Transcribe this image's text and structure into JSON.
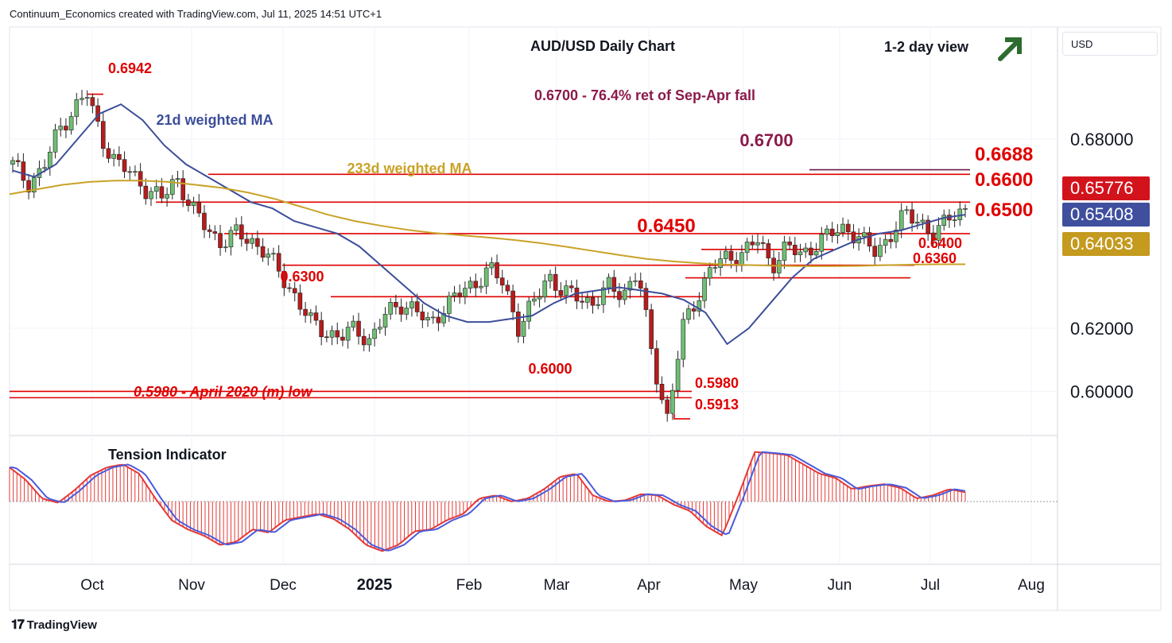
{
  "header": {
    "credit": "Continuum_Economics created with TradingView.com, Jul 11, 2025 14:51 UTC+1"
  },
  "footer": {
    "brand": "TradingView"
  },
  "currency_label": "USD",
  "colors": {
    "up": "#26a69a",
    "down": "#ef5350",
    "support_resistance": "#e00000",
    "wma21": "#3c4e9a",
    "wma233": "#c9a227",
    "fib": "#8b1a4a",
    "arrow": "#2e6b2e",
    "price_tag_last": "#d3131c",
    "price_tag_wma21": "#3f4f9e",
    "price_tag_wma233": "#c49a1f"
  },
  "icons": {
    "trend_arrow": "arrow-up-right-icon"
  },
  "chart_data": [
    {
      "type": "line",
      "title": "AUD/USD Daily Chart",
      "view_label": "1-2 day view",
      "x_ticks": [
        "Oct",
        "Nov",
        "Dec",
        "2025",
        "Feb",
        "Mar",
        "Apr",
        "May",
        "Jun",
        "Jul",
        "Aug"
      ],
      "y_ticks": [
        "0.68000",
        "0.62000",
        "0.60000"
      ],
      "ylim": [
        0.586,
        0.7155
      ],
      "price_tags": [
        {
          "name": "last",
          "value": "0.65776"
        },
        {
          "name": "wma21",
          "value": "0.65408"
        },
        {
          "name": "wma233",
          "value": "0.64033"
        }
      ],
      "annotations": {
        "high": "0.6942",
        "fib_note": "0.6700 - 76.4% ret of Sep-Apr fall",
        "wma21_label": "21d weighted MA",
        "wma233_label": "233d weighted MA",
        "level_6700": "0.6700",
        "level_6688": "0.6688",
        "level_6600": "0.6600",
        "level_6500": "0.6500",
        "level_6450": "0.6450",
        "level_6400": "0.6400",
        "level_6360": "0.6360",
        "level_6300": "0.6300",
        "level_6000": "0.6000",
        "level_5980": "0.5980",
        "level_5980_note": "0.5980 - April 2020 (m) low",
        "low": "0.5913"
      },
      "levels": [
        {
          "value": 0.67,
          "role": "fib"
        },
        {
          "value": 0.6688,
          "role": "resistance"
        },
        {
          "value": 0.66,
          "role": "resistance"
        },
        {
          "value": 0.65,
          "role": "resistance"
        },
        {
          "value": 0.645,
          "role": "support"
        },
        {
          "value": 0.64,
          "role": "support"
        },
        {
          "value": 0.636,
          "role": "support"
        },
        {
          "value": 0.63,
          "role": "support"
        },
        {
          "value": 0.6,
          "role": "support"
        },
        {
          "value": 0.598,
          "role": "support"
        }
      ],
      "series": [
        {
          "name": "21d weighted MA",
          "values": [
            0.67,
            0.668,
            0.672,
            0.68,
            0.688,
            0.691,
            0.686,
            0.678,
            0.672,
            0.668,
            0.664,
            0.66,
            0.658,
            0.654,
            0.652,
            0.65,
            0.646,
            0.64,
            0.634,
            0.628,
            0.624,
            0.622,
            0.622,
            0.623,
            0.624,
            0.628,
            0.631,
            0.632,
            0.633,
            0.632,
            0.631,
            0.629,
            0.625,
            0.615,
            0.62,
            0.628,
            0.636,
            0.642,
            0.645,
            0.648,
            0.65,
            0.651,
            0.653,
            0.655,
            0.656
          ]
        },
        {
          "name": "233d weighted MA",
          "values": [
            0.6625,
            0.664,
            0.6655,
            0.6664,
            0.6668,
            0.6668,
            0.6664,
            0.6655,
            0.6645,
            0.663,
            0.661,
            0.6585,
            0.656,
            0.654,
            0.6525,
            0.6512,
            0.6502,
            0.6495,
            0.6488,
            0.648,
            0.647,
            0.6458,
            0.6445,
            0.6432,
            0.642,
            0.6412,
            0.6406,
            0.6402,
            0.64,
            0.6398,
            0.6397,
            0.6397,
            0.6398,
            0.64,
            0.6402,
            0.6403,
            0.6403
          ]
        }
      ],
      "price_path": [
        0.672,
        0.666,
        0.67,
        0.682,
        0.689,
        0.6942,
        0.68,
        0.672,
        0.669,
        0.664,
        0.661,
        0.668,
        0.658,
        0.652,
        0.647,
        0.65,
        0.648,
        0.644,
        0.637,
        0.63,
        0.622,
        0.619,
        0.617,
        0.62,
        0.616,
        0.624,
        0.628,
        0.626,
        0.621,
        0.627,
        0.631,
        0.634,
        0.639,
        0.634,
        0.62,
        0.628,
        0.637,
        0.631,
        0.63,
        0.628,
        0.633,
        0.631,
        0.638,
        0.61,
        0.5913,
        0.62,
        0.63,
        0.64,
        0.642,
        0.644,
        0.648,
        0.64,
        0.646,
        0.643,
        0.647,
        0.65,
        0.652,
        0.648,
        0.644,
        0.65,
        0.656,
        0.654,
        0.649,
        0.656,
        0.6578
      ]
    },
    {
      "type": "area",
      "title": "Tension Indicator",
      "values": [
        0.55,
        0.35,
        0.05,
        -0.02,
        0.18,
        0.42,
        0.55,
        0.6,
        0.45,
        0.05,
        -0.3,
        -0.45,
        -0.55,
        -0.7,
        -0.65,
        -0.45,
        -0.5,
        -0.3,
        -0.25,
        -0.2,
        -0.28,
        -0.45,
        -0.7,
        -0.8,
        -0.7,
        -0.48,
        -0.45,
        -0.3,
        -0.2,
        0.05,
        0.1,
        0.0,
        0.05,
        0.2,
        0.4,
        0.45,
        0.1,
        0.0,
        0.02,
        0.12,
        0.1,
        -0.05,
        -0.15,
        -0.4,
        -0.55,
        0.1,
        0.8,
        0.78,
        0.75,
        0.6,
        0.45,
        0.38,
        0.2,
        0.25,
        0.28,
        0.22,
        0.05,
        0.1,
        0.2,
        0.15
      ]
    }
  ]
}
